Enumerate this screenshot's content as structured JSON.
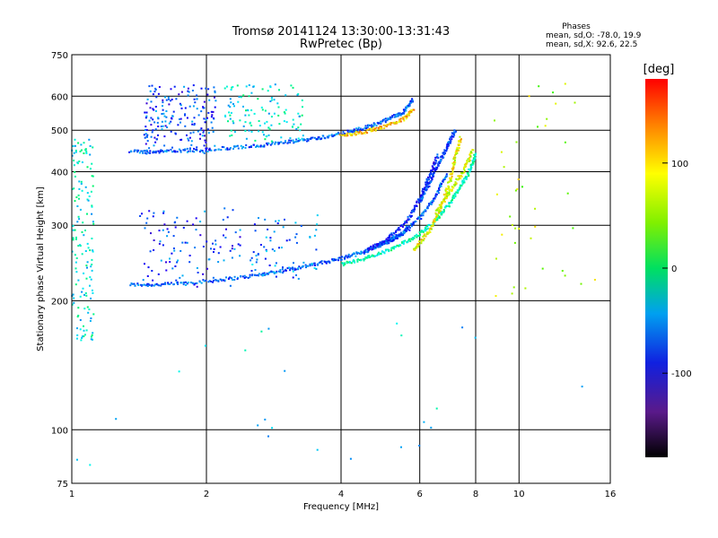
{
  "chart_data": {
    "type": "scatter",
    "title": "Tromsø 20141124 13:30:00-13:31:43",
    "subtitle": "RwPretec (Bp)",
    "xlabel": "Frequency [MHz]",
    "ylabel": "Stationary phase Virtual Height [km]",
    "x_scale": "log",
    "y_scale": "log",
    "xlim": [
      1,
      16
    ],
    "ylim": [
      75,
      750
    ],
    "x_ticks": [
      1,
      2,
      4,
      6,
      8,
      10,
      16
    ],
    "x_tick_labels": [
      "1",
      "2",
      "4",
      "6",
      "8",
      "10",
      "16"
    ],
    "y_ticks": [
      75,
      100,
      200,
      300,
      400,
      500,
      600,
      750
    ],
    "y_tick_labels": [
      "75",
      "100",
      "200",
      "300",
      "400",
      "500",
      "600",
      "750"
    ],
    "grid": true,
    "stats": {
      "heading": "Phases",
      "line_o": "mean, sd,O: -78.0, 19.9",
      "line_x": "mean, sd,X:  92.6, 22.5"
    },
    "colorbar": {
      "label": "[deg]",
      "range": [
        -180,
        180
      ],
      "ticks": [
        100,
        0,
        -100
      ],
      "tick_labels": [
        "100",
        "0",
        "-100"
      ]
    },
    "traces": [
      {
        "x": [
          1.35,
          1.6,
          2.0,
          2.5,
          3.0,
          3.5,
          4.0,
          4.5,
          5.0,
          5.4,
          5.7
        ],
        "y": [
          218,
          218,
          222,
          228,
          236,
          243,
          251,
          260,
          272,
          283,
          296
        ],
        "phase": -100
      },
      {
        "x": [
          4.0,
          4.6,
          5.2,
          5.8,
          6.4,
          6.9,
          7.3,
          7.7,
          8.0
        ],
        "y": [
          243,
          252,
          264,
          280,
          302,
          330,
          360,
          395,
          440
        ],
        "phase": -30
      },
      {
        "x": [
          4.8,
          5.4,
          6.0,
          6.5,
          6.9
        ],
        "y": [
          268,
          285,
          312,
          350,
          395
        ],
        "phase": -100
      },
      {
        "x": [
          5.8,
          6.3,
          6.7,
          7.0,
          7.2,
          7.4
        ],
        "y": [
          262,
          290,
          330,
          380,
          430,
          480
        ],
        "phase": 100
      },
      {
        "x": [
          4.5,
          5.0,
          5.6,
          6.0,
          6.3,
          6.6
        ],
        "y": [
          260,
          275,
          305,
          345,
          390,
          440
        ],
        "phase": -120
      },
      {
        "x": [
          1.35,
          1.6,
          2.0,
          2.5,
          3.0,
          3.5,
          4.0,
          4.5,
          5.0,
          5.5,
          5.8
        ],
        "y": [
          445,
          446,
          450,
          458,
          468,
          478,
          490,
          505,
          525,
          550,
          590
        ],
        "phase": -100
      },
      {
        "x": [
          4.0,
          4.5,
          5.0,
          5.5,
          5.8
        ],
        "y": [
          485,
          495,
          510,
          530,
          560
        ],
        "phase": 120
      },
      {
        "x": [
          6.0,
          6.3,
          6.6,
          6.9,
          7.2
        ],
        "y": [
          340,
          375,
          415,
          455,
          500
        ],
        "phase": -110
      },
      {
        "x": [
          6.5,
          7.0,
          7.5,
          7.9
        ],
        "y": [
          320,
          360,
          400,
          450
        ],
        "phase": 90
      }
    ],
    "clusters": [
      {
        "x": [
          1.45,
          2.1
        ],
        "y": [
          440,
          640
        ],
        "phase": -110,
        "n": 200
      },
      {
        "x": [
          2.2,
          3.3
        ],
        "y": [
          470,
          640
        ],
        "phase": -45,
        "n": 120
      },
      {
        "x": [
          1.0,
          1.12
        ],
        "y": [
          160,
          480
        ],
        "phase": -45,
        "n": 150
      },
      {
        "x": [
          1.4,
          2.4
        ],
        "y": [
          215,
          330
        ],
        "phase": -110,
        "n": 110
      },
      {
        "x": [
          2.5,
          3.6
        ],
        "y": [
          225,
          320
        ],
        "phase": -90,
        "n": 70
      },
      {
        "x": [
          8.8,
          15.0
        ],
        "y": [
          200,
          650
        ],
        "phase": 80,
        "n": 40
      },
      {
        "x": [
          1.0,
          14.0
        ],
        "y": [
          80,
          200
        ],
        "phase": -60,
        "n": 25
      }
    ]
  }
}
